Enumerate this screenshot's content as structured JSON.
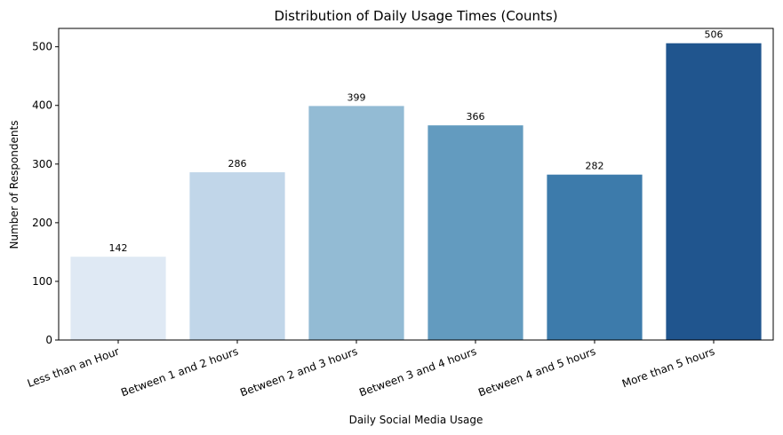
{
  "chart_data": {
    "type": "bar",
    "title": "Distribution of Daily Usage Times (Counts)",
    "xlabel": "Daily Social Media Usage",
    "ylabel": "Number of Respondents",
    "categories": [
      "Less than an Hour",
      "Between 1 and 2 hours",
      "Between 2 and 3 hours",
      "Between 3 and 4 hours",
      "Between 4 and 5 hours",
      "More than 5 hours"
    ],
    "values": [
      142,
      286,
      399,
      366,
      282,
      506
    ],
    "data_labels": [
      "142",
      "286",
      "399",
      "366",
      "282",
      "506"
    ],
    "colors": [
      "#dfe9f4",
      "#c1d6e9",
      "#93bbd4",
      "#639bbf",
      "#3d7bab",
      "#20558e"
    ],
    "ylim": [
      0,
      531.3
    ],
    "yticks": [
      0,
      100,
      200,
      300,
      400,
      500
    ],
    "ytick_labels": [
      "0",
      "100",
      "200",
      "300",
      "400",
      "500"
    ],
    "grid": false,
    "legend": "none"
  }
}
